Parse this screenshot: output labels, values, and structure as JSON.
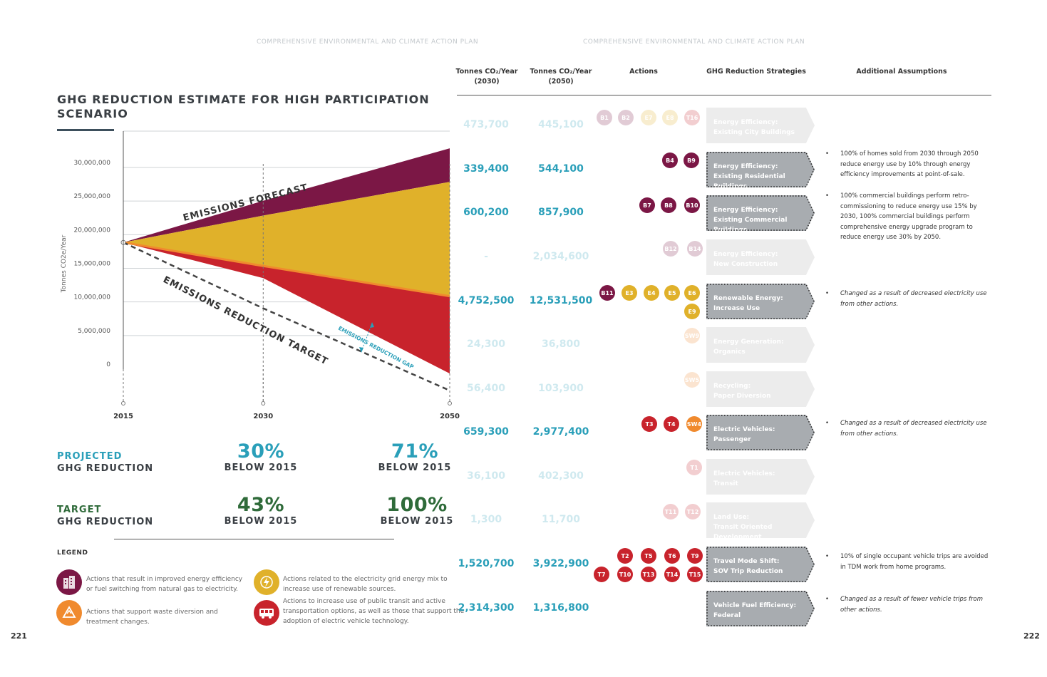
{
  "running_heads": {
    "left": "COMPREHENSIVE ENVIRONMENTAL AND CLIMATE ACTION PLAN",
    "right": "COMPREHENSIVE ENVIRONMENTAL AND CLIMATE ACTION PLAN"
  },
  "page_numbers": {
    "left": "221",
    "right": "222"
  },
  "colors": {
    "forecast_band": "#7b1745",
    "grid_band": "#e0b12a",
    "reduction_band": "#c8232c",
    "orange_line": "#f08a2e",
    "projected": "#2a9fb9",
    "target": "#2f6b3a",
    "efficiency": "#7b1745",
    "waste": "#f08a2e",
    "energy": "#e0b12a",
    "transport": "#c8232c",
    "strategy_box": "#a8acb0"
  },
  "chart_data": {
    "type": "area",
    "title": "GHG REDUCTION ESTIMATE FOR HIGH PARTICIPATION SCENARIO",
    "ylabel": "Tonnes CO2e/Year",
    "xlabel": "",
    "x": [
      2015,
      2030,
      2050
    ],
    "x_tick_labels": [
      "2015",
      "2030",
      "2050"
    ],
    "ylim": [
      0,
      30000000
    ],
    "y_tick_labels": [
      "30,000,000",
      "25,000,000",
      "20,000,000",
      "15,000,000",
      "10,000,000",
      "5,000,000",
      "0"
    ],
    "grid": true,
    "boundaries": {
      "forecast_top": [
        18000000,
        24200000,
        32000000
      ],
      "purple_bottom": [
        18000000,
        22000000,
        27000000
      ],
      "yellow_bottom": [
        18000000,
        14500000,
        10000000
      ],
      "red_bottom": [
        18000000,
        12700000,
        -1500000
      ]
    },
    "target_line": [
      18000000,
      8200000,
      -8500000
    ],
    "annotations": {
      "forecast": "EMISSIONS FORECAST",
      "target": "EMISSIONS REDUCTION TARGET",
      "gap": "EMISSIONS REDUCTION GAP"
    }
  },
  "stats": {
    "projected": {
      "label_top": "PROJECTED",
      "label_bottom": "GHG REDUCTION",
      "p2030": "30%",
      "p2050": "71%",
      "sub": "BELOW 2015"
    },
    "target": {
      "label_top": "TARGET",
      "label_bottom": "GHG REDUCTION",
      "p2030": "43%",
      "p2050": "100%",
      "sub": "BELOW 2015"
    }
  },
  "legend": {
    "title": "LEGEND",
    "items": [
      {
        "icon": "building-icon",
        "color": "#7b1745",
        "text": "Actions that result in improved energy efficiency or fuel switching from natural gas to electricity."
      },
      {
        "icon": "lightning-icon",
        "color": "#e0b12a",
        "text": "Actions related to the electricity grid energy mix to increase use of renewable sources."
      },
      {
        "icon": "recycle-icon",
        "color": "#f08a2e",
        "text": "Actions that support waste diversion and treatment changes."
      },
      {
        "icon": "bus-icon",
        "color": "#c8232c",
        "text": "Actions to increase use of public transit and active transportation options, as well as those that support the adoption of electric vehicle technology."
      }
    ]
  },
  "table": {
    "headers": {
      "t2030_line1": "Tonnes CO₂/Year",
      "t2030_line2": "(2030)",
      "t2050_line1": "Tonnes CO₂/Year",
      "t2050_line2": "(2050)",
      "actions": "Actions",
      "strategies": "GHG Reduction Strategies",
      "assumptions": "Additional Assumptions"
    },
    "rows": [
      {
        "v2030": "473,700",
        "v2050": "445,100",
        "faded": true,
        "strategy_l1": "Energy Efficiency:",
        "strategy_l2": "Existing City Buildings",
        "badges": [
          [
            "B1",
            "#7b1745"
          ],
          [
            "B2",
            "#7b1745"
          ],
          [
            "E7",
            "#e0b12a"
          ],
          [
            "E8",
            "#e0b12a"
          ],
          [
            "T16",
            "#c8232c"
          ]
        ],
        "assumption": ""
      },
      {
        "v2030": "339,400",
        "v2050": "544,100",
        "faded": false,
        "strategy_l1": "Energy Efficiency:",
        "strategy_l2": "Existing Residential Buildings",
        "badges": [
          [
            "B4",
            "#7b1745"
          ],
          [
            "B9",
            "#7b1745"
          ]
        ],
        "assumption": "100% of homes sold from 2030 through 2050 reduce energy use by 10% through energy efficiency improvements at point-of-sale.",
        "italic": false
      },
      {
        "v2030": "600,200",
        "v2050": "857,900",
        "faded": false,
        "strategy_l1": "Energy Efficiency:",
        "strategy_l2": "Existing Commercial Buildings",
        "badges": [
          [
            "B7",
            "#7b1745"
          ],
          [
            "B8",
            "#7b1745"
          ],
          [
            "B10",
            "#7b1745"
          ]
        ],
        "assumption": "100% commercial buildings perform retro-commissioning to reduce energy use 15% by 2030, 100% commercial buildings perform comprehensive energy upgrade program to reduce energy use 30% by 2050.",
        "italic": false
      },
      {
        "v2030": "-",
        "v2050": "2,034,600",
        "faded": true,
        "strategy_l1": "Energy Efficiency:",
        "strategy_l2": "New Construction",
        "badges": [
          [
            "B12",
            "#7b1745"
          ],
          [
            "B14",
            "#7b1745"
          ]
        ],
        "assumption": ""
      },
      {
        "v2030": "4,752,500",
        "v2050": "12,531,500",
        "faded": false,
        "strategy_l1": "Renewable Energy:",
        "strategy_l2": "Increase Use",
        "badges": [
          [
            "B11",
            "#7b1745"
          ],
          [
            "E3",
            "#e0b12a"
          ],
          [
            "E4",
            "#e0b12a"
          ],
          [
            "E5",
            "#e0b12a"
          ],
          [
            "E6",
            "#e0b12a"
          ],
          [
            "E9",
            "#e0b12a"
          ]
        ],
        "assumption": "Changed as a result of decreased electricity use from other actions.",
        "italic": true
      },
      {
        "v2030": "24,300",
        "v2050": "36,800",
        "faded": true,
        "strategy_l1": "Energy Generation:",
        "strategy_l2": "Organics",
        "badges": [
          [
            "SW9",
            "#f08a2e"
          ]
        ],
        "assumption": ""
      },
      {
        "v2030": "56,400",
        "v2050": "103,900",
        "faded": true,
        "strategy_l1": "Recycling:",
        "strategy_l2": "Paper Diversion",
        "badges": [
          [
            "SW5",
            "#f08a2e"
          ]
        ],
        "assumption": ""
      },
      {
        "v2030": "659,300",
        "v2050": "2,977,400",
        "faded": false,
        "strategy_l1": "Electric Vehicles:",
        "strategy_l2": "Passenger",
        "badges": [
          [
            "T3",
            "#c8232c"
          ],
          [
            "T4",
            "#c8232c"
          ],
          [
            "SW4",
            "#f08a2e"
          ]
        ],
        "assumption": "Changed as a result of decreased electricity use from other actions.",
        "italic": true
      },
      {
        "v2030": "36,100",
        "v2050": "402,300",
        "faded": true,
        "strategy_l1": "Electric Vehicles:",
        "strategy_l2": "Transit",
        "badges": [
          [
            "T1",
            "#c8232c"
          ]
        ],
        "assumption": ""
      },
      {
        "v2030": "1,300",
        "v2050": "11,700",
        "faded": true,
        "strategy_l1": "Land Use:",
        "strategy_l2": "Transit Oriented Development",
        "badges": [
          [
            "T11",
            "#c8232c"
          ],
          [
            "T12",
            "#c8232c"
          ]
        ],
        "assumption": ""
      },
      {
        "v2030": "1,520,700",
        "v2050": "3,922,900",
        "faded": false,
        "strategy_l1": "Travel Mode Shift:",
        "strategy_l2": "SOV Trip Reduction",
        "badges": [
          [
            "T2",
            "#c8232c"
          ],
          [
            "T5",
            "#c8232c"
          ],
          [
            "T6",
            "#c8232c"
          ],
          [
            "T9",
            "#c8232c"
          ],
          [
            "T7",
            "#c8232c"
          ],
          [
            "T10",
            "#c8232c"
          ],
          [
            "T13",
            "#c8232c"
          ],
          [
            "T14",
            "#c8232c"
          ],
          [
            "T15",
            "#c8232c"
          ]
        ],
        "assumption": "10% of single occupant vehicle trips are avoided in TDM work from home programs.",
        "italic": false
      },
      {
        "v2030": "2,314,300",
        "v2050": "1,316,800",
        "faded": false,
        "strategy_l1": "Vehicle Fuel Efficiency:",
        "strategy_l2": "Federal",
        "badges": [],
        "assumption": "Changed as a result of fewer vehicle trips from other actions.",
        "italic": true
      }
    ]
  }
}
